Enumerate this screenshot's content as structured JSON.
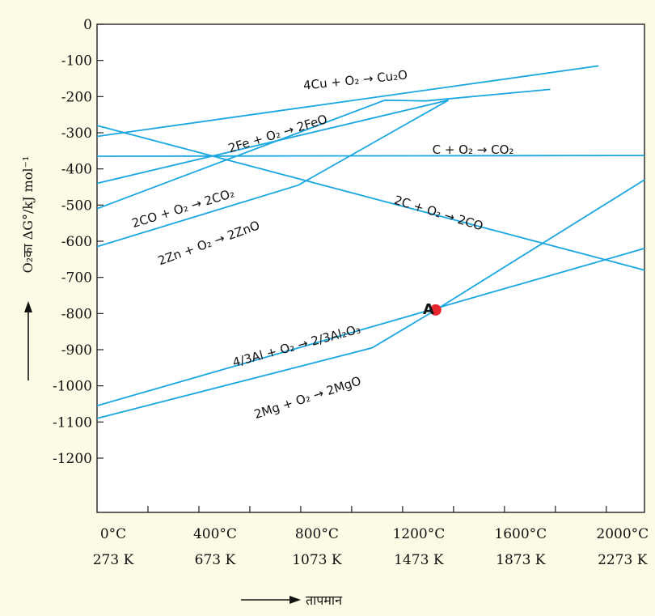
{
  "chart_data": {
    "type": "line",
    "title": "",
    "xlabel": "तापमान",
    "ylabel": "O₂का ΔG°/kJ mol⁻¹",
    "xlim": [
      0,
      2150
    ],
    "ylim": [
      -1350,
      0
    ],
    "y_ticks": [
      "0",
      "-100",
      "-200",
      "-300",
      "-400",
      "-500",
      "-600",
      "-700",
      "-800",
      "-900",
      "-1000",
      "-1100",
      "-1200"
    ],
    "x_ticks": [
      {
        "celsius": "0°C",
        "kelvin": "273 K"
      },
      {
        "celsius": "400°C",
        "kelvin": "673 K"
      },
      {
        "celsius": "800°C",
        "kelvin": "1073 K"
      },
      {
        "celsius": "1200°C",
        "kelvin": "1473 K"
      },
      {
        "celsius": "1600°C",
        "kelvin": "1873 K"
      },
      {
        "celsius": "2000°C",
        "kelvin": "2273 K"
      }
    ],
    "grid": false,
    "line_color": "#1aa7e1",
    "series": [
      {
        "name": "4Cu + O₂ → Cu₂O",
        "points": [
          [
            0,
            -310
          ],
          [
            1970,
            -115
          ]
        ]
      },
      {
        "name": "2Fe + O₂ → 2FeO",
        "points": [
          [
            0,
            -510
          ],
          [
            1130,
            -210
          ],
          [
            1290,
            -212
          ],
          [
            1780,
            -180
          ]
        ]
      },
      {
        "name": "C + O₂ → CO₂",
        "points": [
          [
            0,
            -365
          ],
          [
            2150,
            -363
          ]
        ]
      },
      {
        "name": "2CO + O₂ → 2CO₂",
        "points": [
          [
            0,
            -440
          ],
          [
            1380,
            -210
          ]
        ]
      },
      {
        "name": "2C + O₂ → 2CO",
        "points": [
          [
            0,
            -280
          ],
          [
            2150,
            -680
          ]
        ]
      },
      {
        "name": "2Zn + O₂ → 2ZnO",
        "points": [
          [
            0,
            -615
          ],
          [
            790,
            -445
          ],
          [
            1380,
            -210
          ]
        ]
      },
      {
        "name": "4/3Al + O₂ → 2/3Al₂O₃",
        "points": [
          [
            0,
            -1055
          ],
          [
            2150,
            -620
          ]
        ]
      },
      {
        "name": "2Mg + O₂ → 2MgO",
        "points": [
          [
            0,
            -1090
          ],
          [
            1080,
            -895
          ],
          [
            1330,
            -790
          ],
          [
            2150,
            -430
          ]
        ]
      }
    ],
    "annotations": [
      {
        "label": "A",
        "x": 1330,
        "y": -790,
        "color": "#e8262e"
      }
    ]
  }
}
